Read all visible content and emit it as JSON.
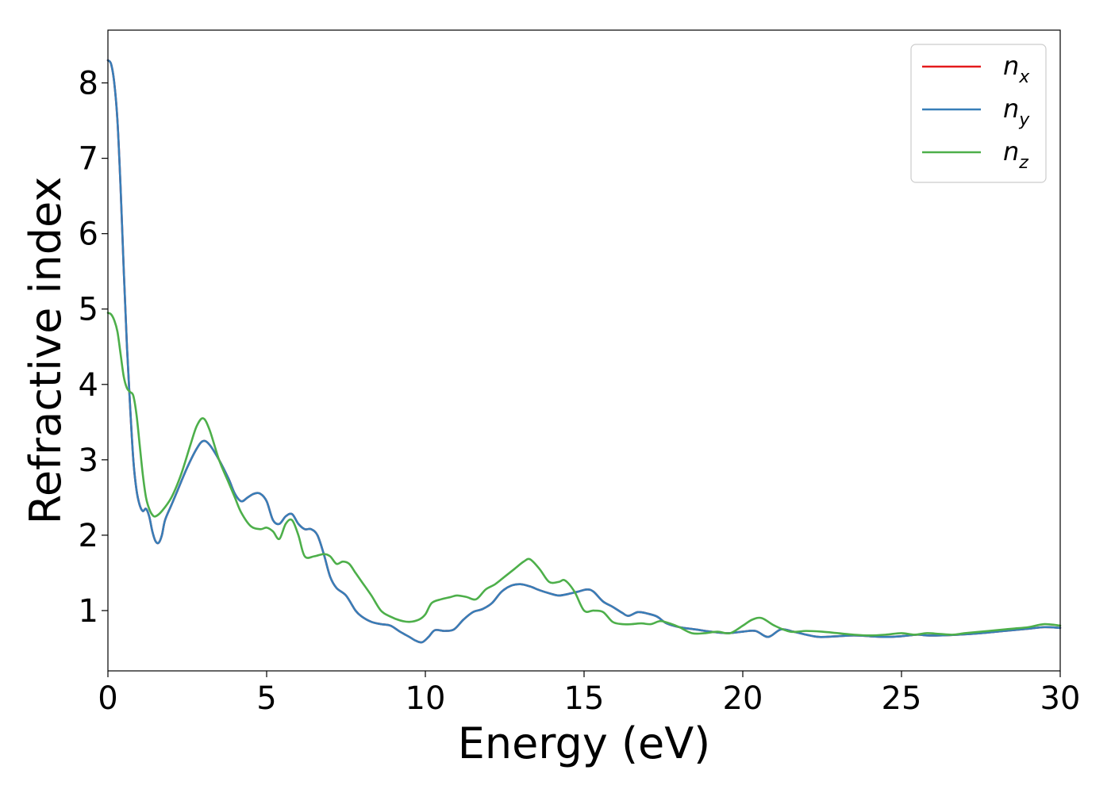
{
  "chart_data": {
    "type": "line",
    "xlabel": "Energy (eV)",
    "ylabel": "Refractive index",
    "xlim": [
      0,
      30
    ],
    "ylim": [
      0.2,
      8.7
    ],
    "xticks": [
      "0",
      "5",
      "10",
      "15",
      "20",
      "25",
      "30"
    ],
    "yticks": [
      "1",
      "2",
      "3",
      "4",
      "5",
      "6",
      "7",
      "8"
    ],
    "grid": false,
    "legend_position": "top-right",
    "series": [
      {
        "name": "n_x",
        "legend_base": "n",
        "legend_sub": "x",
        "color": "#e41a1c",
        "x": [
          0,
          0.1,
          0.2,
          0.3,
          0.4,
          0.5,
          0.6,
          0.7,
          0.8,
          0.9,
          1.0,
          1.1,
          1.2,
          1.3,
          1.4,
          1.5,
          1.6,
          1.7,
          1.8,
          2.0,
          2.2,
          2.5,
          2.8,
          3.0,
          3.2,
          3.5,
          3.8,
          4.0,
          4.2,
          4.4,
          4.6,
          4.8,
          5.0,
          5.2,
          5.4,
          5.6,
          5.8,
          6.0,
          6.2,
          6.4,
          6.6,
          6.8,
          7.0,
          7.2,
          7.5,
          7.8,
          8.0,
          8.3,
          8.6,
          8.9,
          9.2,
          9.5,
          9.7,
          9.9,
          10.1,
          10.3,
          10.6,
          10.9,
          11.2,
          11.5,
          11.8,
          12.1,
          12.4,
          12.7,
          13.0,
          13.3,
          13.6,
          13.9,
          14.2,
          14.5,
          14.8,
          15.1,
          15.3,
          15.6,
          15.9,
          16.2,
          16.4,
          16.7,
          17.0,
          17.3,
          17.6,
          18.0,
          18.5,
          19.0,
          19.5,
          20.0,
          20.4,
          20.8,
          21.2,
          21.6,
          22.0,
          22.4,
          23.0,
          23.5,
          24.0,
          24.5,
          25.0,
          25.5,
          25.8,
          26.2,
          26.8,
          27.5,
          28.0,
          28.5,
          29.0,
          29.5,
          30.0
        ],
        "y": [
          8.3,
          8.25,
          8.0,
          7.5,
          6.6,
          5.5,
          4.5,
          3.7,
          3.0,
          2.6,
          2.4,
          2.32,
          2.35,
          2.25,
          2.05,
          1.92,
          1.9,
          2.0,
          2.2,
          2.4,
          2.6,
          2.9,
          3.15,
          3.25,
          3.2,
          3.0,
          2.75,
          2.55,
          2.45,
          2.5,
          2.55,
          2.55,
          2.45,
          2.2,
          2.15,
          2.25,
          2.28,
          2.15,
          2.08,
          2.08,
          2.0,
          1.75,
          1.45,
          1.3,
          1.2,
          1.0,
          0.92,
          0.85,
          0.82,
          0.8,
          0.72,
          0.65,
          0.6,
          0.58,
          0.65,
          0.74,
          0.73,
          0.75,
          0.88,
          0.98,
          1.02,
          1.1,
          1.25,
          1.33,
          1.35,
          1.32,
          1.27,
          1.23,
          1.2,
          1.22,
          1.25,
          1.28,
          1.25,
          1.12,
          1.05,
          0.97,
          0.93,
          0.98,
          0.96,
          0.92,
          0.83,
          0.78,
          0.75,
          0.72,
          0.7,
          0.72,
          0.73,
          0.65,
          0.75,
          0.72,
          0.68,
          0.65,
          0.66,
          0.67,
          0.66,
          0.65,
          0.66,
          0.68,
          0.67,
          0.67,
          0.68,
          0.7,
          0.72,
          0.74,
          0.76,
          0.78,
          0.77
        ]
      },
      {
        "name": "n_y",
        "legend_base": "n",
        "legend_sub": "y",
        "color": "#377eb8",
        "x": [
          0,
          0.1,
          0.2,
          0.3,
          0.4,
          0.5,
          0.6,
          0.7,
          0.8,
          0.9,
          1.0,
          1.1,
          1.2,
          1.3,
          1.4,
          1.5,
          1.6,
          1.7,
          1.8,
          2.0,
          2.2,
          2.5,
          2.8,
          3.0,
          3.2,
          3.5,
          3.8,
          4.0,
          4.2,
          4.4,
          4.6,
          4.8,
          5.0,
          5.2,
          5.4,
          5.6,
          5.8,
          6.0,
          6.2,
          6.4,
          6.6,
          6.8,
          7.0,
          7.2,
          7.5,
          7.8,
          8.0,
          8.3,
          8.6,
          8.9,
          9.2,
          9.5,
          9.7,
          9.9,
          10.1,
          10.3,
          10.6,
          10.9,
          11.2,
          11.5,
          11.8,
          12.1,
          12.4,
          12.7,
          13.0,
          13.3,
          13.6,
          13.9,
          14.2,
          14.5,
          14.8,
          15.1,
          15.3,
          15.6,
          15.9,
          16.2,
          16.4,
          16.7,
          17.0,
          17.3,
          17.6,
          18.0,
          18.5,
          19.0,
          19.5,
          20.0,
          20.4,
          20.8,
          21.2,
          21.6,
          22.0,
          22.4,
          23.0,
          23.5,
          24.0,
          24.5,
          25.0,
          25.5,
          25.8,
          26.2,
          26.8,
          27.5,
          28.0,
          28.5,
          29.0,
          29.5,
          30.0
        ],
        "y": [
          8.3,
          8.25,
          8.0,
          7.5,
          6.6,
          5.5,
          4.5,
          3.7,
          3.0,
          2.6,
          2.4,
          2.32,
          2.35,
          2.25,
          2.05,
          1.92,
          1.9,
          2.0,
          2.2,
          2.4,
          2.6,
          2.9,
          3.15,
          3.25,
          3.2,
          3.0,
          2.75,
          2.55,
          2.45,
          2.5,
          2.55,
          2.55,
          2.45,
          2.2,
          2.15,
          2.25,
          2.28,
          2.15,
          2.08,
          2.08,
          2.0,
          1.75,
          1.45,
          1.3,
          1.2,
          1.0,
          0.92,
          0.85,
          0.82,
          0.8,
          0.72,
          0.65,
          0.6,
          0.58,
          0.65,
          0.74,
          0.73,
          0.75,
          0.88,
          0.98,
          1.02,
          1.1,
          1.25,
          1.33,
          1.35,
          1.32,
          1.27,
          1.23,
          1.2,
          1.22,
          1.25,
          1.28,
          1.25,
          1.12,
          1.05,
          0.97,
          0.93,
          0.98,
          0.96,
          0.92,
          0.83,
          0.78,
          0.75,
          0.72,
          0.7,
          0.72,
          0.73,
          0.65,
          0.75,
          0.72,
          0.68,
          0.65,
          0.66,
          0.67,
          0.66,
          0.65,
          0.66,
          0.68,
          0.67,
          0.67,
          0.68,
          0.7,
          0.72,
          0.74,
          0.76,
          0.78,
          0.77
        ]
      },
      {
        "name": "n_z",
        "legend_base": "n",
        "legend_sub": "z",
        "color": "#4daf4a",
        "x": [
          0,
          0.1,
          0.2,
          0.3,
          0.4,
          0.5,
          0.6,
          0.7,
          0.8,
          0.9,
          1.0,
          1.1,
          1.2,
          1.3,
          1.4,
          1.5,
          1.7,
          2.0,
          2.3,
          2.6,
          2.8,
          3.0,
          3.2,
          3.5,
          3.8,
          4.0,
          4.2,
          4.5,
          4.8,
          5.0,
          5.2,
          5.4,
          5.6,
          5.8,
          6.0,
          6.2,
          6.5,
          6.8,
          7.0,
          7.2,
          7.4,
          7.6,
          7.8,
          8.0,
          8.3,
          8.6,
          8.9,
          9.2,
          9.5,
          9.8,
          10.0,
          10.2,
          10.5,
          10.8,
          11.0,
          11.3,
          11.6,
          11.9,
          12.2,
          12.5,
          12.8,
          13.1,
          13.3,
          13.6,
          13.9,
          14.2,
          14.4,
          14.7,
          15.0,
          15.3,
          15.6,
          15.9,
          16.2,
          16.5,
          16.8,
          17.1,
          17.4,
          17.7,
          18.0,
          18.4,
          18.8,
          19.2,
          19.6,
          20.0,
          20.3,
          20.6,
          21.0,
          21.5,
          22.0,
          22.5,
          23.0,
          23.5,
          24.0,
          24.5,
          25.0,
          25.4,
          25.8,
          26.2,
          26.6,
          27.0,
          27.5,
          28.0,
          28.5,
          29.0,
          29.5,
          30.0
        ],
        "y": [
          4.95,
          4.93,
          4.85,
          4.7,
          4.4,
          4.1,
          3.95,
          3.9,
          3.85,
          3.6,
          3.2,
          2.8,
          2.5,
          2.35,
          2.27,
          2.25,
          2.32,
          2.5,
          2.8,
          3.2,
          3.45,
          3.55,
          3.4,
          3.0,
          2.7,
          2.5,
          2.3,
          2.12,
          2.08,
          2.1,
          2.05,
          1.95,
          2.15,
          2.2,
          2.0,
          1.72,
          1.72,
          1.75,
          1.72,
          1.62,
          1.65,
          1.62,
          1.5,
          1.38,
          1.2,
          1.0,
          0.92,
          0.87,
          0.85,
          0.88,
          0.95,
          1.1,
          1.15,
          1.18,
          1.2,
          1.18,
          1.15,
          1.28,
          1.35,
          1.45,
          1.55,
          1.65,
          1.68,
          1.55,
          1.38,
          1.38,
          1.4,
          1.25,
          1.0,
          1.0,
          0.98,
          0.85,
          0.82,
          0.82,
          0.83,
          0.82,
          0.86,
          0.83,
          0.78,
          0.7,
          0.7,
          0.72,
          0.7,
          0.8,
          0.88,
          0.9,
          0.8,
          0.72,
          0.73,
          0.72,
          0.7,
          0.68,
          0.67,
          0.68,
          0.7,
          0.68,
          0.7,
          0.69,
          0.68,
          0.7,
          0.72,
          0.74,
          0.76,
          0.78,
          0.82,
          0.8
        ]
      }
    ]
  }
}
